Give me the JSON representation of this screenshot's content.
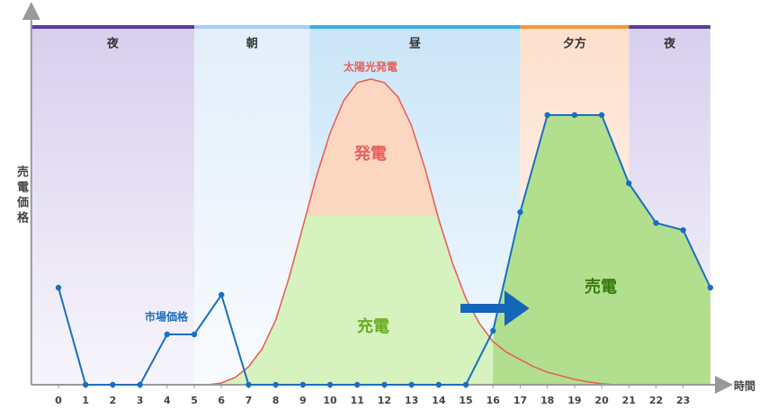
{
  "chart_data": {
    "type": "line",
    "ylabel": "売電価格",
    "xlabel": "時間",
    "xlim": [
      -1,
      24.5
    ],
    "ylim": [
      0,
      100
    ],
    "xticks": [
      0,
      1,
      2,
      3,
      4,
      5,
      6,
      7,
      8,
      9,
      10,
      11,
      12,
      13,
      14,
      15,
      16,
      17,
      18,
      19,
      20,
      21,
      22,
      23
    ],
    "bands": [
      {
        "label": "夜",
        "start": -1,
        "end": 5,
        "color": "#5a3d9c",
        "fill": "#d8cfee"
      },
      {
        "label": "朝",
        "start": 5,
        "end": 9.25,
        "color": "#a7cdf3",
        "fill": "#e2eefa"
      },
      {
        "label": "昼",
        "start": 9.25,
        "end": 17,
        "color": "#3aaee8",
        "fill": "#c9e5f8"
      },
      {
        "label": "夕方",
        "start": 17,
        "end": 21,
        "color": "#f4963a",
        "fill": "#fde0cc"
      },
      {
        "label": "夜",
        "start": 21,
        "end": 24,
        "color": "#5a3d9c",
        "fill": "#d8cfee"
      }
    ],
    "charge_limit": 47,
    "series": [
      {
        "name": "市場価格",
        "color": "#1a6fc0",
        "x": [
          0,
          1,
          2,
          3,
          4,
          5,
          6,
          7,
          8,
          9,
          10,
          11,
          12,
          13,
          14,
          15,
          16,
          17,
          18,
          19,
          20,
          21,
          22,
          23,
          24
        ],
        "values": [
          27,
          0,
          0,
          0,
          14,
          14,
          25,
          0,
          0,
          0,
          0,
          0,
          0,
          0,
          0,
          0,
          15,
          48,
          75,
          75,
          75,
          56,
          45,
          43,
          27
        ]
      },
      {
        "name": "太陽光発電",
        "color": "#e8615a",
        "x": [
          5.5,
          6,
          6.5,
          7,
          7.5,
          8,
          8.5,
          9,
          9.5,
          10,
          10.5,
          11,
          11.5,
          12,
          12.5,
          13,
          13.5,
          14,
          14.5,
          15,
          15.5,
          16,
          16.5,
          17,
          17.5,
          18,
          18.5,
          19,
          19.5,
          20,
          20.5
        ],
        "values": [
          0,
          0.5,
          2,
          5,
          10,
          18,
          30,
          44,
          58,
          70,
          79,
          84,
          85,
          84,
          80,
          72,
          60,
          46,
          34,
          24,
          17,
          12,
          9,
          7,
          5,
          3.5,
          2.5,
          1.5,
          0.8,
          0.3,
          0
        ]
      }
    ],
    "annotations": {
      "generation": "発電",
      "charge": "充電",
      "sale": "売電"
    }
  }
}
